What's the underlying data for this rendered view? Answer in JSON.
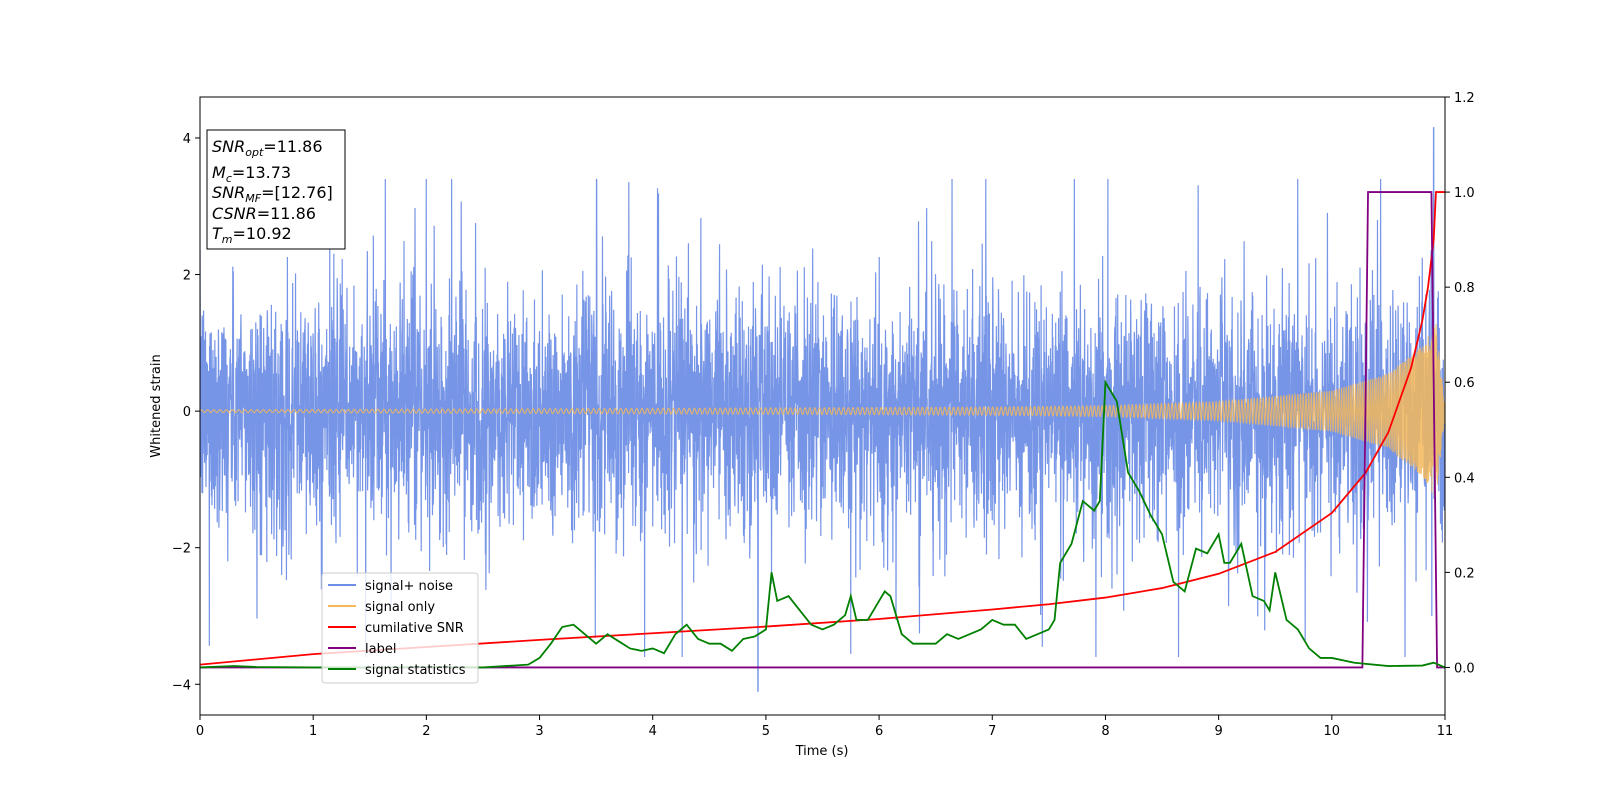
{
  "chart_data": {
    "type": "line",
    "title": "",
    "xlabel": "Time (s)",
    "ylabel": "Whitened strain",
    "y2label": "",
    "xlim": [
      0,
      11
    ],
    "ylim": [
      -4.45,
      4.6
    ],
    "y2lim": [
      -0.1,
      1.2
    ],
    "xticks": [
      0,
      1,
      2,
      3,
      4,
      5,
      6,
      7,
      8,
      9,
      10,
      11
    ],
    "yticks": [
      -4,
      -2,
      0,
      2,
      4
    ],
    "y2ticks": [
      0.0,
      0.2,
      0.4,
      0.6,
      0.8,
      1.0,
      1.2
    ],
    "y2tick_labels": [
      "0.0",
      "0.2",
      "0.4",
      "0.6",
      "0.8",
      "1.0",
      "1.2"
    ],
    "grid": false,
    "legend_position": "lower-left",
    "colors": {
      "signal_noise": "#6f8fe6",
      "signal_only": "#f5b95a",
      "cumulative_snr": "#ff0000",
      "label": "#800080",
      "signal_statistics": "#008000"
    },
    "series": [
      {
        "name": "signal+ noise",
        "axis": "left",
        "description_kind": "noise",
        "sigma": 0.95,
        "peak_max": 4.15,
        "peak_min": -4.1,
        "values_sampled": [
          [
            0.0,
            0.4
          ],
          [
            0.5,
            -0.8
          ],
          [
            1.0,
            1.1
          ],
          [
            1.5,
            -1.3
          ],
          [
            2.0,
            0.9
          ],
          [
            2.5,
            -0.6
          ],
          [
            3.0,
            1.2
          ],
          [
            3.5,
            -1.0
          ],
          [
            4.0,
            0.7
          ],
          [
            4.5,
            -1.2
          ],
          [
            5.0,
            1.0
          ],
          [
            5.5,
            -0.9
          ],
          [
            6.0,
            1.3
          ],
          [
            6.5,
            -0.7
          ],
          [
            7.0,
            0.8
          ],
          [
            7.5,
            -1.1
          ],
          [
            8.0,
            1.0
          ],
          [
            8.5,
            -1.2
          ],
          [
            9.0,
            0.9
          ],
          [
            9.5,
            -0.8
          ],
          [
            10.0,
            1.1
          ],
          [
            10.5,
            -1.0
          ],
          [
            10.9,
            4.15
          ],
          [
            11.0,
            0.2
          ]
        ]
      },
      {
        "name": "signal only",
        "axis": "left",
        "description_kind": "chirp",
        "merger_time": 10.92,
        "amplitude_at": [
          [
            0.0,
            0.02
          ],
          [
            4.0,
            0.04
          ],
          [
            7.0,
            0.06
          ],
          [
            8.0,
            0.08
          ],
          [
            9.0,
            0.14
          ],
          [
            10.0,
            0.3
          ],
          [
            10.5,
            0.55
          ],
          [
            10.8,
            0.95
          ],
          [
            10.92,
            1.3
          ]
        ]
      },
      {
        "name": "cumilative SNR",
        "axis": "right",
        "x": [
          0,
          1,
          2,
          3,
          4,
          5,
          6,
          7,
          7.5,
          8,
          8.5,
          9,
          9.5,
          10,
          10.3,
          10.5,
          10.7,
          10.8,
          10.85,
          10.9,
          10.92,
          11
        ],
        "values": [
          0.006,
          0.028,
          0.043,
          0.058,
          0.072,
          0.086,
          0.102,
          0.122,
          0.133,
          0.147,
          0.167,
          0.197,
          0.243,
          0.325,
          0.41,
          0.495,
          0.63,
          0.73,
          0.8,
          0.9,
          1.0,
          1.0
        ]
      },
      {
        "name": "label",
        "axis": "right",
        "x": [
          0,
          10.27,
          10.32,
          10.88,
          10.93,
          11
        ],
        "values": [
          0.0,
          0.0,
          1.0,
          1.0,
          0.0,
          0.0
        ]
      },
      {
        "name": "signal statistics",
        "axis": "right",
        "x": [
          0,
          0.3,
          0.5,
          1.0,
          1.5,
          2.0,
          2.5,
          2.9,
          3.0,
          3.1,
          3.2,
          3.3,
          3.4,
          3.5,
          3.6,
          3.7,
          3.8,
          3.9,
          4.0,
          4.1,
          4.2,
          4.3,
          4.4,
          4.5,
          4.6,
          4.7,
          4.8,
          4.9,
          5.0,
          5.05,
          5.1,
          5.2,
          5.3,
          5.4,
          5.5,
          5.6,
          5.7,
          5.75,
          5.8,
          5.9,
          6.0,
          6.05,
          6.1,
          6.2,
          6.3,
          6.4,
          6.5,
          6.6,
          6.7,
          6.8,
          6.9,
          7.0,
          7.1,
          7.2,
          7.3,
          7.4,
          7.5,
          7.55,
          7.6,
          7.7,
          7.8,
          7.9,
          7.95,
          8.0,
          8.1,
          8.2,
          8.3,
          8.4,
          8.5,
          8.6,
          8.7,
          8.8,
          8.9,
          9.0,
          9.05,
          9.1,
          9.2,
          9.3,
          9.4,
          9.45,
          9.5,
          9.6,
          9.7,
          9.8,
          9.9,
          10.0,
          10.2,
          10.5,
          10.8,
          10.9,
          11.0
        ],
        "values": [
          0.0,
          0.003,
          0.001,
          0.0,
          0.0,
          0.001,
          0.0,
          0.006,
          0.02,
          0.05,
          0.085,
          0.09,
          0.07,
          0.05,
          0.07,
          0.055,
          0.04,
          0.035,
          0.04,
          0.03,
          0.07,
          0.09,
          0.06,
          0.05,
          0.05,
          0.035,
          0.06,
          0.065,
          0.08,
          0.2,
          0.14,
          0.15,
          0.12,
          0.09,
          0.08,
          0.09,
          0.11,
          0.15,
          0.1,
          0.1,
          0.14,
          0.16,
          0.15,
          0.07,
          0.05,
          0.05,
          0.05,
          0.07,
          0.06,
          0.07,
          0.08,
          0.1,
          0.09,
          0.09,
          0.06,
          0.07,
          0.08,
          0.1,
          0.22,
          0.26,
          0.35,
          0.33,
          0.35,
          0.6,
          0.56,
          0.41,
          0.37,
          0.32,
          0.28,
          0.18,
          0.16,
          0.25,
          0.24,
          0.28,
          0.22,
          0.22,
          0.26,
          0.15,
          0.14,
          0.12,
          0.2,
          0.1,
          0.08,
          0.04,
          0.02,
          0.02,
          0.01,
          0.003,
          0.004,
          0.01,
          0.0
        ]
      }
    ],
    "legend": [
      {
        "label": "signal+ noise",
        "color_key": "signal_noise"
      },
      {
        "label": "signal only",
        "color_key": "signal_only"
      },
      {
        "label": "cumilative SNR",
        "color_key": "cumulative_snr"
      },
      {
        "label": "label",
        "color_key": "label"
      },
      {
        "label": "signal statistics",
        "color_key": "signal_statistics"
      }
    ],
    "annotation_box": {
      "lines": [
        {
          "var": "SNR",
          "sub": "opt",
          "value": "=11.86"
        },
        {
          "var": "M",
          "sub": "c",
          "value": "=13.73"
        },
        {
          "var": "SNR",
          "sub": "MF",
          "value": "=[12.76]"
        },
        {
          "var": "CSNR",
          "sub": "",
          "value": "=11.86"
        },
        {
          "var": "T",
          "sub": "m",
          "value": "=10.92"
        }
      ]
    }
  }
}
